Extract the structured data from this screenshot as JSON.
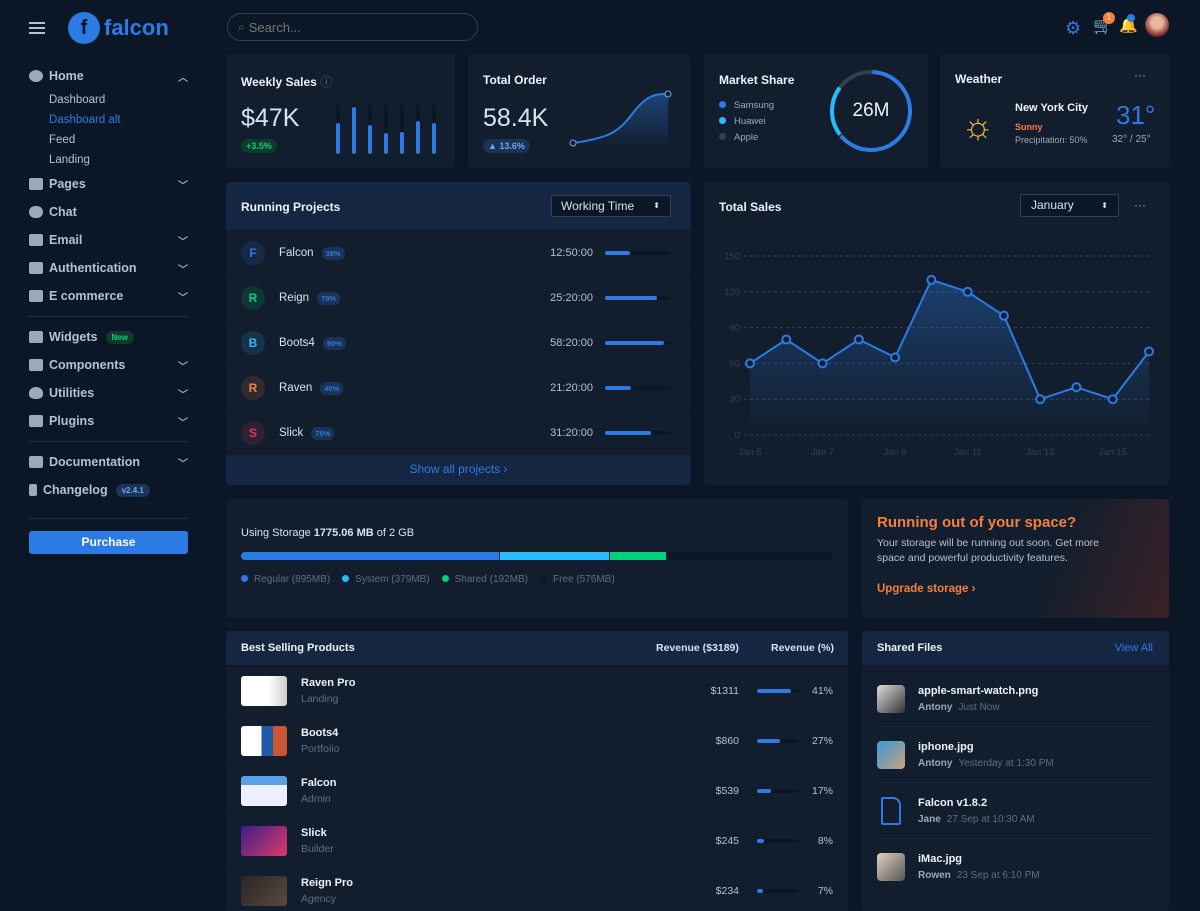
{
  "brand": {
    "name": "falcon"
  },
  "search": {
    "placeholder": "Search..."
  },
  "topbar": {
    "cart_count": "1"
  },
  "sidebar": {
    "home": {
      "label": "Home",
      "children": [
        "Dashboard",
        "Dashboard alt",
        "Feed",
        "Landing"
      ],
      "active": "Dashboard alt"
    },
    "items": [
      {
        "label": "Pages",
        "icon": "copy-icon"
      },
      {
        "label": "Chat",
        "icon": "comments-icon"
      },
      {
        "label": "Email",
        "icon": "envelope-icon"
      },
      {
        "label": "Authentication",
        "icon": "unlock-icon"
      },
      {
        "label": "E commerce",
        "icon": "cart-icon"
      }
    ],
    "items2": [
      {
        "label": "Widgets",
        "badge": "New"
      },
      {
        "label": "Components"
      },
      {
        "label": "Utilities"
      },
      {
        "label": "Plugins"
      }
    ],
    "items3": [
      {
        "label": "Documentation"
      },
      {
        "label": "Changelog",
        "badge": "v2.4.1"
      }
    ],
    "purchase": "Purchase"
  },
  "weekly_sales": {
    "title": "Weekly Sales",
    "value": "$47K",
    "change": "+3.5%",
    "bars": [
      0.62,
      0.95,
      0.58,
      0.42,
      0.45,
      0.67,
      0.63
    ]
  },
  "total_order": {
    "title": "Total Order",
    "value": "58.4K",
    "change": "▲ 13.6%"
  },
  "market_share": {
    "title": "Market Share",
    "total": "26M",
    "legend": [
      {
        "name": "Samsung",
        "color": "#2c7be5"
      },
      {
        "name": "Huawei",
        "color": "#27bcfd"
      },
      {
        "name": "Apple",
        "color": "#344050"
      }
    ]
  },
  "weather": {
    "title": "Weather",
    "city": "New York City",
    "condition": "Sunny",
    "precipitation": "Precipitation: 50%",
    "temp": "31°",
    "range": "32° / 25°"
  },
  "projects": {
    "title": "Running Projects",
    "select": "Working Time",
    "footer": "Show all projects ›",
    "rows": [
      {
        "letter": "F",
        "name": "Falcon",
        "pct": "38%",
        "progress": 38,
        "time": "12:50:00",
        "color": "#2c7be5"
      },
      {
        "letter": "R",
        "name": "Reign",
        "pct": "79%",
        "progress": 79,
        "time": "25:20:00",
        "color": "#00d27a"
      },
      {
        "letter": "B",
        "name": "Boots4",
        "pct": "90%",
        "progress": 90,
        "time": "58:20:00",
        "color": "#27bcfd"
      },
      {
        "letter": "R",
        "name": "Raven",
        "pct": "40%",
        "progress": 40,
        "time": "21:20:00",
        "color": "#f5803e"
      },
      {
        "letter": "S",
        "name": "Slick",
        "pct": "70%",
        "progress": 70,
        "time": "31:20:00",
        "color": "#e63757"
      }
    ]
  },
  "chart_data": {
    "type": "area",
    "title": "Total Sales",
    "select": "January",
    "x": [
      "Jan 5",
      "Jan 6",
      "Jan 7",
      "Jan 8",
      "Jan 9",
      "Jan 10",
      "Jan 11",
      "Jan 12",
      "Jan 13",
      "Jan 14",
      "Jan 15",
      "Jan 16"
    ],
    "values": [
      60,
      80,
      60,
      80,
      65,
      130,
      120,
      100,
      30,
      40,
      30,
      70
    ],
    "xticks": [
      "Jan 5",
      "Jan 7",
      "Jan 9",
      "Jan 11",
      "Jan 13",
      "Jan 15"
    ],
    "yticks": [
      0,
      30,
      60,
      90,
      120,
      150
    ],
    "ylim": [
      0,
      150
    ],
    "grid": true,
    "color": "#2c7be5"
  },
  "storage": {
    "label": "Using Storage",
    "used": "1775.06 MB",
    "of": "of 2 GB",
    "segments": [
      {
        "name": "Regular (895MB)",
        "mb": 895,
        "color": "#2c7be5"
      },
      {
        "name": "System (379MB)",
        "mb": 379,
        "color": "#27bcfd"
      },
      {
        "name": "Shared (192MB)",
        "mb": 192,
        "color": "#00d27a"
      },
      {
        "name": "Free (576MB)",
        "mb": 576,
        "color": "#0b1727"
      }
    ]
  },
  "promo": {
    "title": "Running out of your space?",
    "text": "Your storage will be running out soon. Get more space and powerful productivity features.",
    "link": "Upgrade storage ›"
  },
  "products": {
    "title": "Best Selling Products",
    "col1": "Revenue ($3189)",
    "col2": "Revenue (%)",
    "rows": [
      {
        "name": "Raven Pro",
        "type": "Landing",
        "revenue": "$1311",
        "pct": "41%",
        "p": 41
      },
      {
        "name": "Boots4",
        "type": "Portfolio",
        "revenue": "$860",
        "pct": "27%",
        "p": 27
      },
      {
        "name": "Falcon",
        "type": "Admin",
        "revenue": "$539",
        "pct": "17%",
        "p": 17
      },
      {
        "name": "Slick",
        "type": "Builder",
        "revenue": "$245",
        "pct": "8%",
        "p": 8
      },
      {
        "name": "Reign Pro",
        "type": "Agency",
        "revenue": "$234",
        "pct": "7%",
        "p": 7
      }
    ]
  },
  "files": {
    "title": "Shared Files",
    "view_all": "View All",
    "rows": [
      {
        "name": "apple-smart-watch.png",
        "user": "Antony",
        "time": "Just Now"
      },
      {
        "name": "iphone.jpg",
        "user": "Antony",
        "time": "Yesterday at 1:30 PM"
      },
      {
        "name": "Falcon v1.8.2",
        "user": "Jane",
        "time": "27 Sep at 10:30 AM"
      },
      {
        "name": "iMac.jpg",
        "user": "Rowen",
        "time": "23 Sep at 6:10 PM"
      }
    ]
  }
}
